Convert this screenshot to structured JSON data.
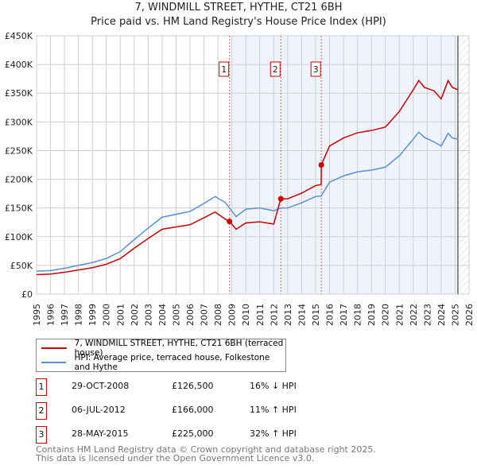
{
  "title": "7, WINDMILL STREET, HYTHE, CT21 6BH",
  "subtitle": "Price paid vs. HM Land Registry's House Price Index (HPI)",
  "chart_data": {
    "type": "line",
    "xlim": [
      1995,
      2026
    ],
    "ylim": [
      0,
      450000
    ],
    "yticks": [
      0,
      50000,
      100000,
      150000,
      200000,
      250000,
      300000,
      350000,
      400000,
      450000
    ],
    "ytick_labels": [
      "£0",
      "£50K",
      "£100K",
      "£150K",
      "£200K",
      "£250K",
      "£300K",
      "£350K",
      "£400K",
      "£450K"
    ],
    "xticks": [
      1995,
      1996,
      1997,
      1998,
      1999,
      2000,
      2001,
      2002,
      2003,
      2004,
      2005,
      2006,
      2007,
      2008,
      2009,
      2010,
      2011,
      2012,
      2013,
      2014,
      2015,
      2016,
      2017,
      2018,
      2019,
      2020,
      2021,
      2022,
      2023,
      2024,
      2025,
      2026
    ],
    "series": [
      {
        "name": "7, WINDMILL STREET, HYTHE, CT21 6BH (terraced house)",
        "color": "#cc0000",
        "x": [
          1995,
          1996,
          1997,
          1998,
          1999,
          2000,
          2001,
          2002,
          2003,
          2004,
          2005,
          2006,
          2007,
          2007.8,
          2008.5,
          2008.83,
          2009.3,
          2010,
          2011,
          2012,
          2012.5,
          2013,
          2014,
          2015,
          2015.4,
          2015.41,
          2016,
          2017,
          2018,
          2019,
          2020,
          2021,
          2022,
          2022.4,
          2022.8,
          2023.5,
          2024,
          2024.5,
          2024.8,
          2025.2
        ],
        "y": [
          34000,
          35000,
          38000,
          42000,
          46000,
          52000,
          62000,
          80000,
          97000,
          113000,
          117000,
          121000,
          133000,
          143000,
          131000,
          126500,
          113000,
          124000,
          126000,
          122000,
          166000,
          166000,
          176000,
          189000,
          191000,
          225000,
          258000,
          272000,
          281000,
          285000,
          291000,
          318000,
          356000,
          372000,
          360000,
          354000,
          340000,
          372000,
          360000,
          356000
        ]
      },
      {
        "name": "HPI: Average price, terraced house, Folkestone and Hythe",
        "color": "#5b8fd4",
        "x": [
          1995,
          1996,
          1997,
          1998,
          1999,
          2000,
          2001,
          2002,
          2003,
          2004,
          2005,
          2006,
          2007,
          2007.8,
          2008.5,
          2008.83,
          2009.3,
          2010,
          2011,
          2012,
          2012.5,
          2013,
          2014,
          2015,
          2015.4,
          2016,
          2017,
          2018,
          2019,
          2020,
          2021,
          2022,
          2022.4,
          2022.8,
          2023.5,
          2024,
          2024.5,
          2024.8,
          2025.2
        ],
        "y": [
          40000,
          41000,
          45000,
          50000,
          55000,
          62000,
          74000,
          95000,
          115000,
          134000,
          139000,
          144000,
          158000,
          170000,
          160000,
          150000,
          135000,
          148000,
          150000,
          145000,
          150000,
          150000,
          159000,
          170000,
          171000,
          195000,
          206000,
          213000,
          216000,
          221000,
          241000,
          270000,
          282000,
          273000,
          265000,
          258000,
          280000,
          272000,
          270000
        ]
      }
    ],
    "sales": [
      {
        "label": "1",
        "x": 2008.83,
        "y": 126500,
        "date": "29-OCT-2008",
        "price": "£126,500",
        "hpi": "16% ↓ HPI"
      },
      {
        "label": "2",
        "x": 2012.51,
        "y": 166000,
        "date": "06-JUL-2012",
        "price": "£166,000",
        "hpi": "11% ↑ HPI"
      },
      {
        "label": "3",
        "x": 2015.41,
        "y": 225000,
        "date": "28-MAY-2015",
        "price": "£225,000",
        "hpi": "32% ↑ HPI"
      }
    ],
    "forecast_start": 2025.2
  },
  "legend": {
    "red": "7, WINDMILL STREET, HYTHE, CT21 6BH (terraced house)",
    "blue": "HPI: Average price, terraced house, Folkestone and Hythe"
  },
  "footer": [
    "Contains HM Land Registry data © Crown copyright and database right 2025.",
    "This data is licensed under the Open Government Licence v3.0."
  ]
}
